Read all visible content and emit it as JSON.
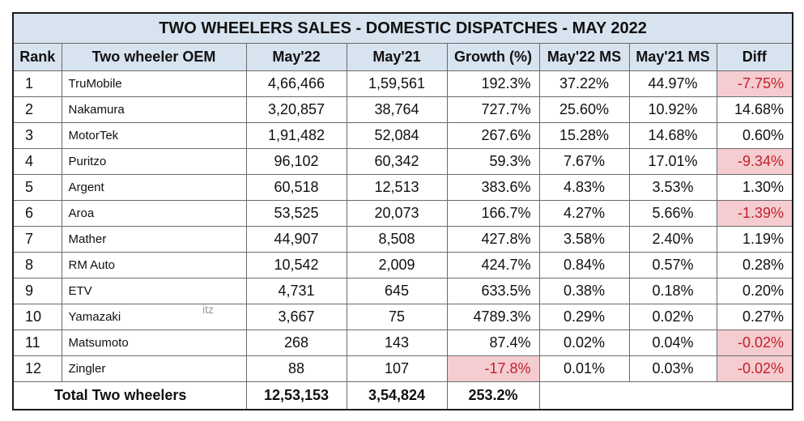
{
  "title": "TWO WHEELERS SALES - DOMESTIC DISPATCHES - MAY 2022",
  "headers": [
    "Rank",
    "Two wheeler OEM",
    "May'22",
    "May'21",
    "Growth (%)",
    "May'22 MS",
    "May'21 MS",
    "Diff"
  ],
  "rows": [
    {
      "rank": "1",
      "oem": "TruMobile",
      "may22": "4,66,466",
      "may21": "1,59,561",
      "growth": "192.3%",
      "ms22": "37.22%",
      "ms21": "44.97%",
      "diff": "-7.75%",
      "growth_neg": false,
      "diff_neg": true
    },
    {
      "rank": "2",
      "oem": "Nakamura",
      "may22": "3,20,857",
      "may21": "38,764",
      "growth": "727.7%",
      "ms22": "25.60%",
      "ms21": "10.92%",
      "diff": "14.68%",
      "growth_neg": false,
      "diff_neg": false
    },
    {
      "rank": "3",
      "oem": "MotorTek",
      "may22": "1,91,482",
      "may21": "52,084",
      "growth": "267.6%",
      "ms22": "15.28%",
      "ms21": "14.68%",
      "diff": "0.60%",
      "growth_neg": false,
      "diff_neg": false
    },
    {
      "rank": "4",
      "oem": "Puritzo",
      "may22": "96,102",
      "may21": "60,342",
      "growth": "59.3%",
      "ms22": "7.67%",
      "ms21": "17.01%",
      "diff": "-9.34%",
      "growth_neg": false,
      "diff_neg": true
    },
    {
      "rank": "5",
      "oem": "Argent",
      "may22": "60,518",
      "may21": "12,513",
      "growth": "383.6%",
      "ms22": "4.83%",
      "ms21": "3.53%",
      "diff": "1.30%",
      "growth_neg": false,
      "diff_neg": false
    },
    {
      "rank": "6",
      "oem": "Aroa",
      "may22": "53,525",
      "may21": "20,073",
      "growth": "166.7%",
      "ms22": "4.27%",
      "ms21": "5.66%",
      "diff": "-1.39%",
      "growth_neg": false,
      "diff_neg": true
    },
    {
      "rank": "7",
      "oem": "Mather",
      "may22": "44,907",
      "may21": "8,508",
      "growth": "427.8%",
      "ms22": "3.58%",
      "ms21": "2.40%",
      "diff": "1.19%",
      "growth_neg": false,
      "diff_neg": false
    },
    {
      "rank": "8",
      "oem": "RM Auto",
      "may22": "10,542",
      "may21": "2,009",
      "growth": "424.7%",
      "ms22": "0.84%",
      "ms21": "0.57%",
      "diff": "0.28%",
      "growth_neg": false,
      "diff_neg": false
    },
    {
      "rank": "9",
      "oem": "ETV",
      "may22": "4,731",
      "may21": "645",
      "growth": "633.5%",
      "ms22": "0.38%",
      "ms21": "0.18%",
      "diff": "0.20%",
      "growth_neg": false,
      "diff_neg": false
    },
    {
      "rank": "10",
      "oem": "Yamazaki",
      "may22": "3,667",
      "may21": "75",
      "growth": "4789.3%",
      "ms22": "0.29%",
      "ms21": "0.02%",
      "diff": "0.27%",
      "growth_neg": false,
      "diff_neg": false
    },
    {
      "rank": "11",
      "oem": "Matsumoto",
      "may22": "268",
      "may21": "143",
      "growth": "87.4%",
      "ms22": "0.02%",
      "ms21": "0.04%",
      "diff": "-0.02%",
      "growth_neg": false,
      "diff_neg": true
    },
    {
      "rank": "12",
      "oem": "Zingler",
      "may22": "88",
      "may21": "107",
      "growth": "-17.8%",
      "ms22": "0.01%",
      "ms21": "0.03%",
      "diff": "-0.02%",
      "growth_neg": true,
      "diff_neg": true
    }
  ],
  "total": {
    "label": "Total Two wheelers",
    "may22": "12,53,153",
    "may21": "3,54,824",
    "growth": "253.2%"
  },
  "stray_text": "itz",
  "colors": {
    "header_bg": "#d8e3f0",
    "negative_bg": "#f5cccf",
    "negative_text": "#c21f2b"
  }
}
